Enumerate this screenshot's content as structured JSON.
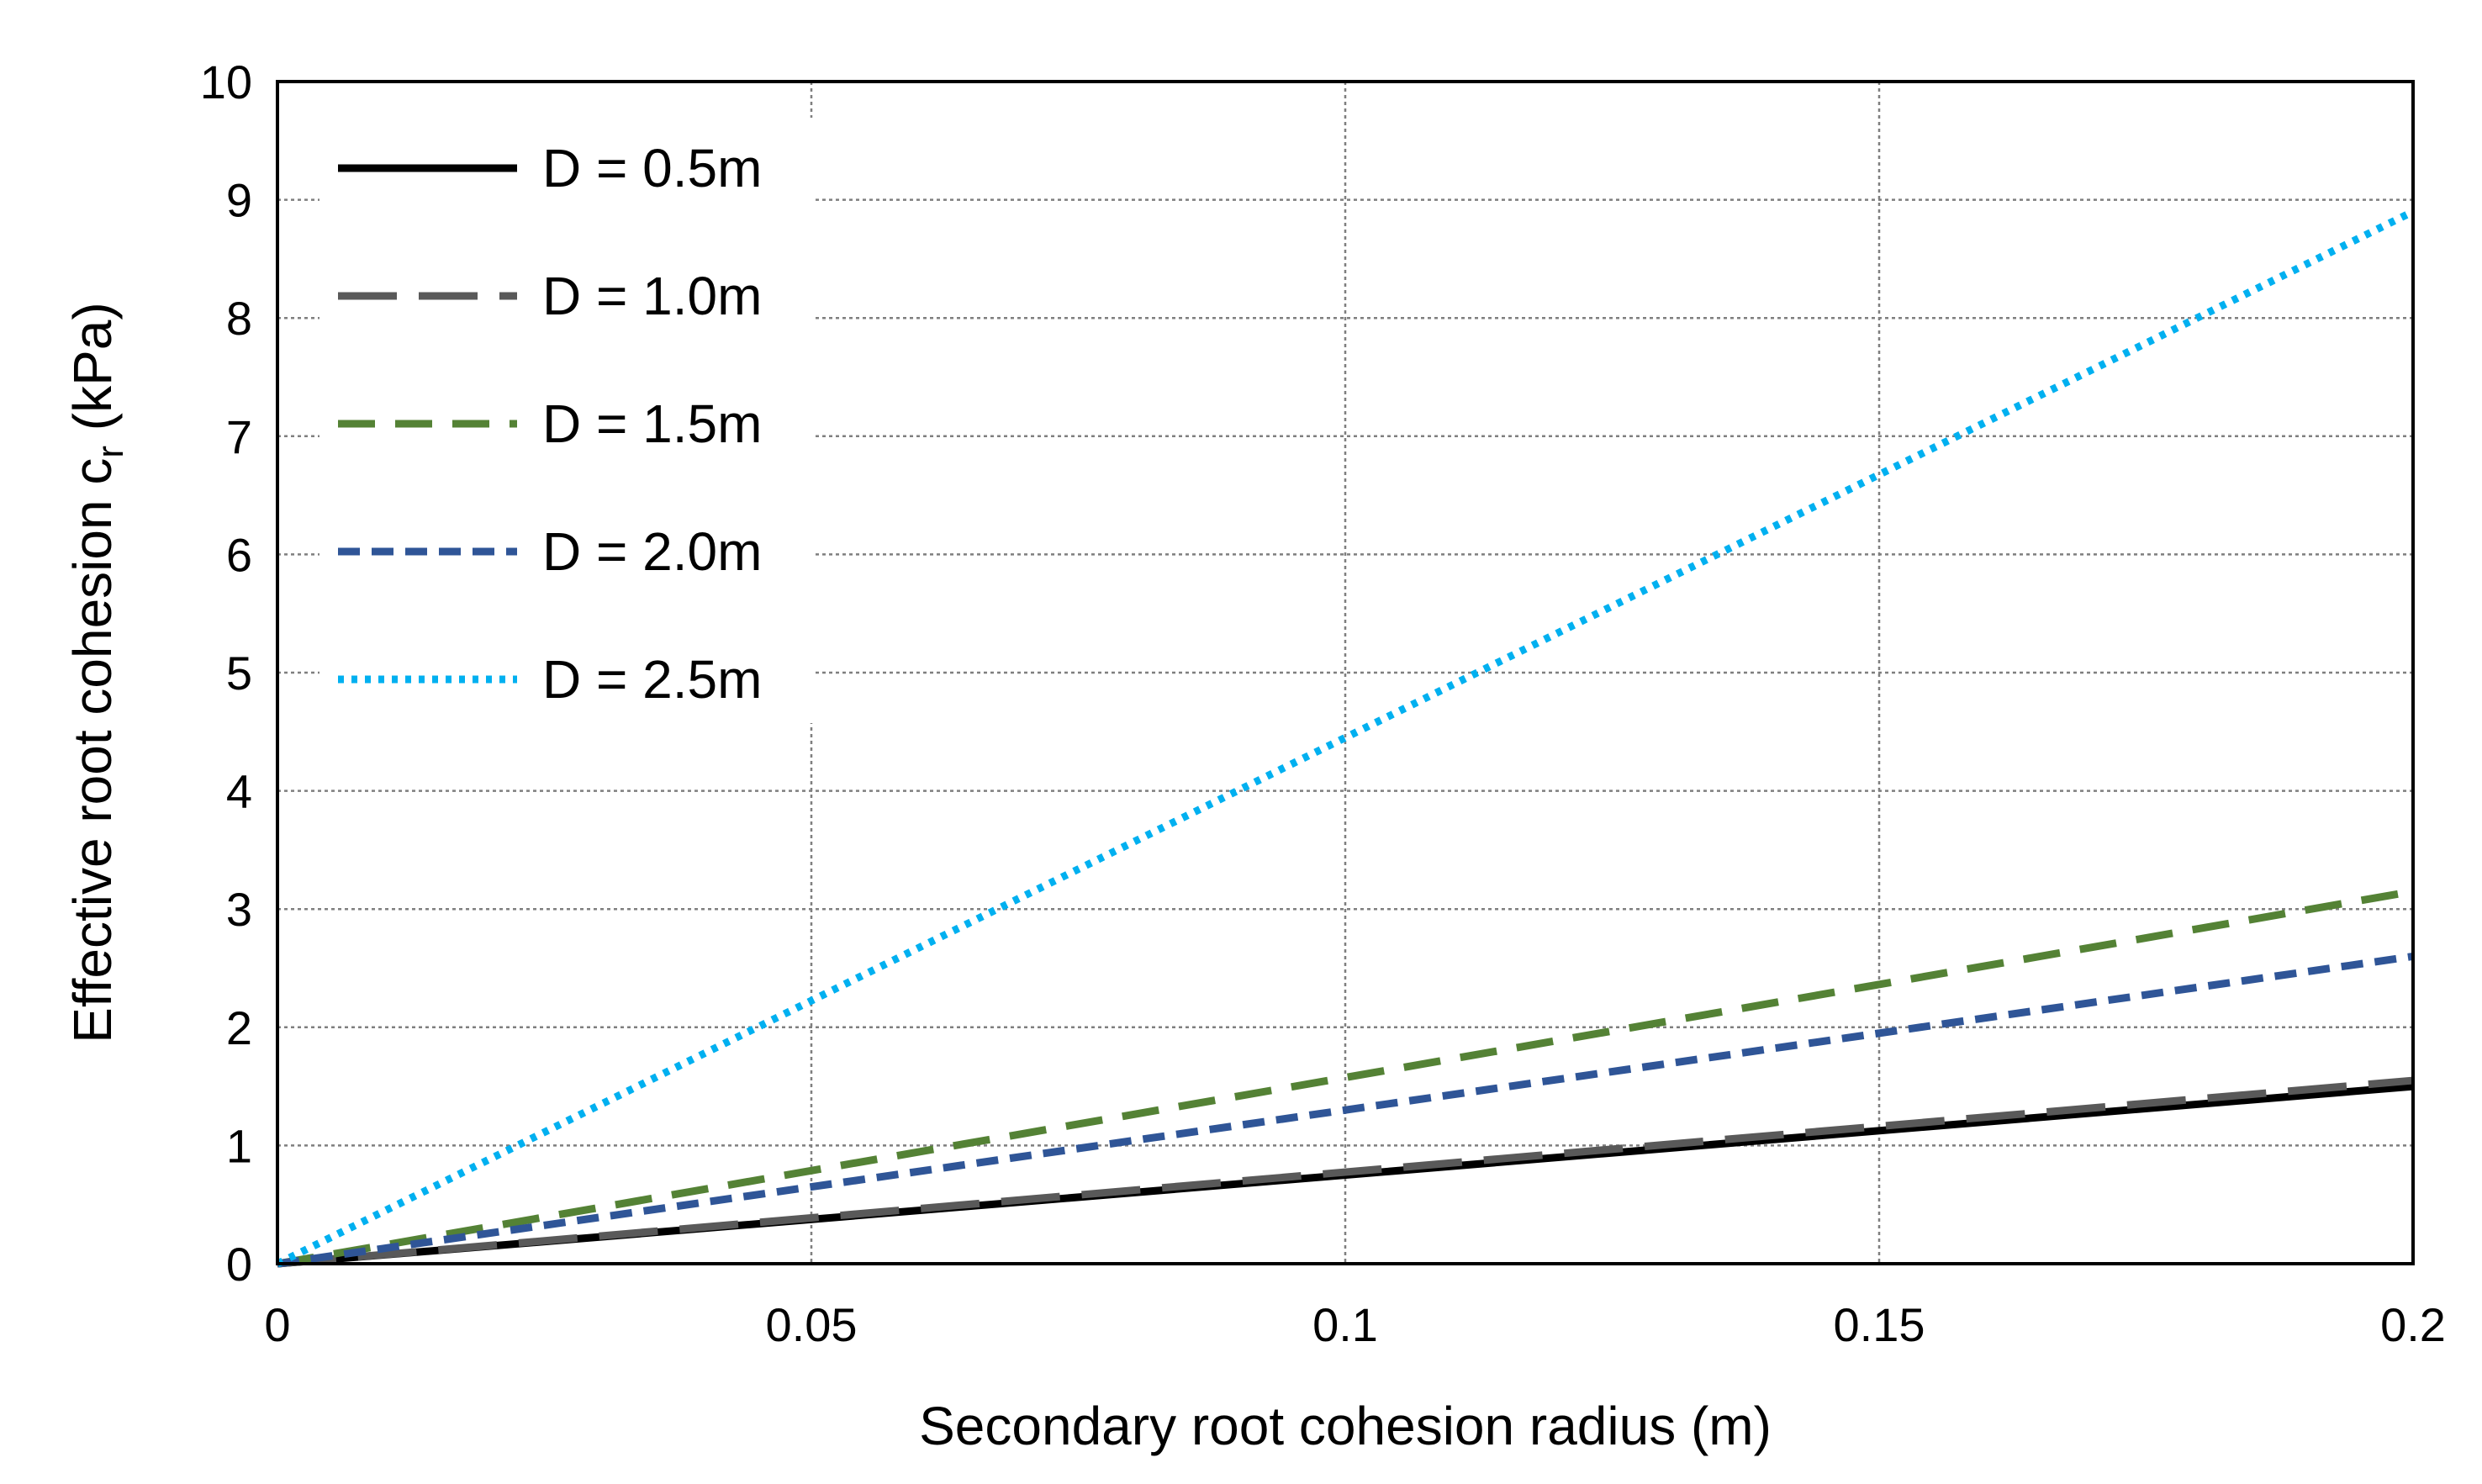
{
  "chart_data": {
    "type": "line",
    "title": "",
    "xlabel": "Secondary root cohesion radius (m)",
    "ylabel_main": "Effective root cohesion c",
    "ylabel_sub": "r",
    "ylabel_unit": " (kPa)",
    "xlim": [
      0,
      0.2
    ],
    "ylim": [
      0,
      10
    ],
    "xticks": [
      0,
      0.05,
      0.1,
      0.15,
      0.2
    ],
    "xtick_labels": [
      "0",
      "0.05",
      "0.1",
      "0.15",
      "0.2"
    ],
    "yticks": [
      0,
      1,
      2,
      3,
      4,
      5,
      6,
      7,
      8,
      9,
      10
    ],
    "ytick_labels": [
      "0",
      "1",
      "2",
      "3",
      "4",
      "5",
      "6",
      "7",
      "8",
      "9",
      "10"
    ],
    "grid": true,
    "legend_position": "top-left",
    "series": [
      {
        "name": "D = 0.5m",
        "color": "#000000",
        "style": "solid",
        "x": [
          0,
          0.2
        ],
        "y": [
          0,
          1.5
        ]
      },
      {
        "name": "D = 1.0m",
        "color": "#595959",
        "style": "long-dash",
        "x": [
          0,
          0.2
        ],
        "y": [
          0,
          1.55
        ]
      },
      {
        "name": "D = 1.5m",
        "color": "#548235",
        "style": "dash",
        "x": [
          0,
          0.2
        ],
        "y": [
          0,
          3.15
        ]
      },
      {
        "name": "D = 2.0m",
        "color": "#2F5597",
        "style": "short-dash",
        "x": [
          0,
          0.2
        ],
        "y": [
          0,
          2.6
        ]
      },
      {
        "name": "D = 2.5m",
        "color": "#00B0F0",
        "style": "dot",
        "x": [
          0,
          0.2
        ],
        "y": [
          0,
          8.9
        ]
      }
    ]
  }
}
